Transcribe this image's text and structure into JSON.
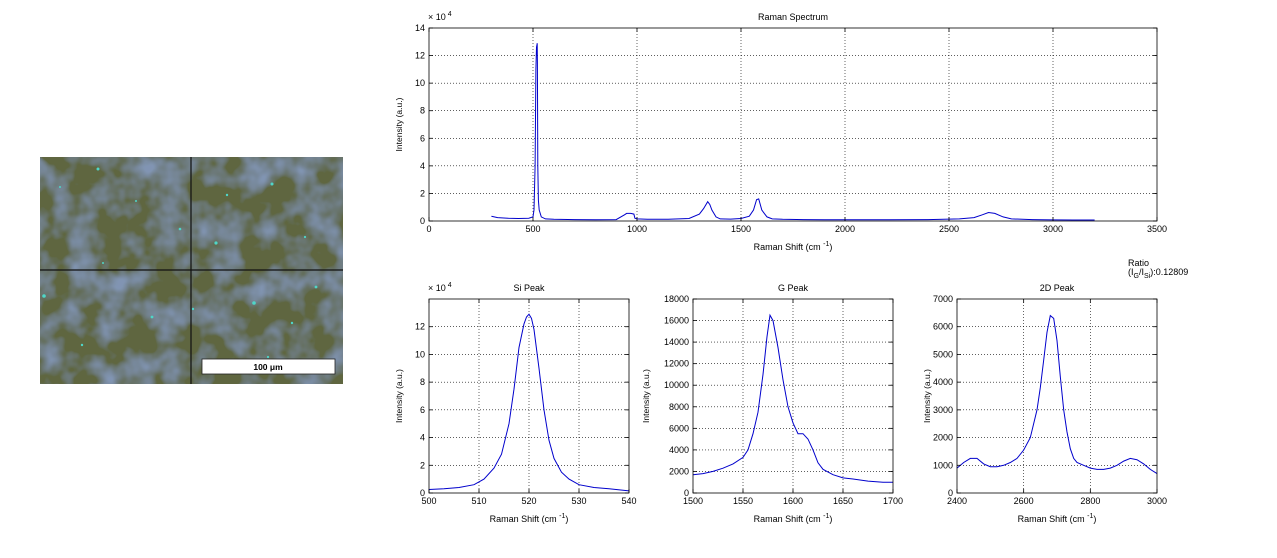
{
  "micrograph": {
    "scale_bar_label": "100 μm"
  },
  "ratio_annotation": {
    "label": "Ratio",
    "ratio_value": ":0.12809"
  },
  "chart_data": [
    {
      "type": "line",
      "title": "Raman Spectrum",
      "xlabel": "Raman Shift (cm -1)",
      "ylabel": "Intensity (a.u.)",
      "xlim": [
        0,
        3500
      ],
      "ylim": [
        0,
        140000
      ],
      "xticks": [
        0,
        500,
        1000,
        1500,
        2000,
        2500,
        3000,
        3500
      ],
      "yticks": [
        0,
        20000,
        40000,
        60000,
        80000,
        100000,
        120000,
        140000
      ],
      "ytick_labels": [
        "0",
        "2",
        "4",
        "6",
        "8",
        "10",
        "12",
        "14"
      ],
      "y_multiplier": "× 10^4",
      "grid": true,
      "line_color": "#0000cc",
      "x": [
        300,
        330,
        380,
        430,
        480,
        500,
        505,
        510,
        514,
        517,
        519,
        520,
        521,
        523,
        526,
        530,
        540,
        560,
        600,
        700,
        800,
        900,
        940,
        950,
        970,
        985,
        990,
        1000,
        1050,
        1150,
        1250,
        1300,
        1320,
        1340,
        1350,
        1360,
        1380,
        1400,
        1450,
        1500,
        1540,
        1560,
        1575,
        1585,
        1600,
        1612,
        1625,
        1650,
        1700,
        1800,
        1900,
        2000,
        2200,
        2400,
        2550,
        2620,
        2660,
        2690,
        2720,
        2760,
        2800,
        2900,
        3000,
        3100,
        3200
      ],
      "y": [
        3500,
        2500,
        2000,
        1800,
        2000,
        3000,
        8000,
        40000,
        110000,
        126000,
        128000,
        129000,
        115000,
        40000,
        15000,
        8000,
        3000,
        1500,
        1200,
        1000,
        900,
        1000,
        4500,
        5500,
        5500,
        5000,
        2000,
        1500,
        1300,
        1300,
        1800,
        5000,
        9000,
        14000,
        12000,
        8000,
        3000,
        1500,
        1400,
        1800,
        3500,
        8000,
        15500,
        16000,
        8000,
        5500,
        3000,
        1500,
        1200,
        1000,
        900,
        900,
        900,
        1000,
        1500,
        2500,
        4500,
        6200,
        5500,
        3000,
        1500,
        1000,
        800,
        700,
        700
      ]
    },
    {
      "type": "line",
      "title": "Si Peak",
      "xlabel": "Raman Shift (cm -1)",
      "ylabel": "Intensity (a.u.)",
      "xlim": [
        500,
        540
      ],
      "ylim": [
        0,
        140000
      ],
      "xticks": [
        500,
        510,
        520,
        530,
        540
      ],
      "yticks": [
        0,
        20000,
        40000,
        60000,
        80000,
        100000,
        120000
      ],
      "ytick_labels": [
        "0",
        "2",
        "4",
        "6",
        "8",
        "10",
        "12"
      ],
      "y_multiplier": "× 10^4",
      "grid": true,
      "line_color": "#0000cc",
      "x": [
        500,
        503,
        506,
        509,
        511,
        513,
        514.5,
        516,
        517,
        518,
        519,
        519.5,
        520,
        520.5,
        521,
        522,
        523,
        524,
        525,
        526.5,
        528,
        530,
        533,
        536,
        540
      ],
      "y": [
        2500,
        3000,
        4000,
        6000,
        10000,
        18000,
        28000,
        50000,
        75000,
        105000,
        122000,
        127000,
        129000,
        126000,
        118000,
        90000,
        60000,
        38000,
        25000,
        15000,
        10000,
        6000,
        4000,
        3000,
        1500
      ]
    },
    {
      "type": "line",
      "title": "G Peak",
      "xlabel": "Raman Shift (cm -1)",
      "ylabel": "Intensity (a.u.)",
      "xlim": [
        1500,
        1700
      ],
      "ylim": [
        0,
        18000
      ],
      "xticks": [
        1500,
        1550,
        1600,
        1650,
        1700
      ],
      "yticks": [
        0,
        2000,
        4000,
        6000,
        8000,
        10000,
        12000,
        14000,
        16000,
        18000
      ],
      "grid": true,
      "line_color": "#0000cc",
      "x": [
        1500,
        1510,
        1520,
        1530,
        1540,
        1550,
        1555,
        1560,
        1565,
        1570,
        1574,
        1577,
        1580,
        1585,
        1590,
        1595,
        1600,
        1605,
        1610,
        1615,
        1620,
        1625,
        1630,
        1640,
        1650,
        1660,
        1675,
        1690,
        1700
      ],
      "y": [
        1700,
        1800,
        2000,
        2300,
        2700,
        3300,
        4000,
        5500,
        7500,
        11000,
        14500,
        16500,
        16000,
        13500,
        10500,
        8000,
        6500,
        5500,
        5500,
        5000,
        4000,
        2800,
        2200,
        1700,
        1400,
        1300,
        1100,
        1000,
        1000
      ]
    },
    {
      "type": "line",
      "title": "2D Peak",
      "xlabel": "Raman Shift (cm -1)",
      "ylabel": "Intensity (a.u.)",
      "xlim": [
        2400,
        3000
      ],
      "ylim": [
        0,
        7000
      ],
      "xticks": [
        2400,
        2600,
        2800,
        3000
      ],
      "yticks": [
        0,
        1000,
        2000,
        3000,
        4000,
        5000,
        6000,
        7000
      ],
      "grid": true,
      "line_color": "#0000cc",
      "x": [
        2400,
        2420,
        2440,
        2460,
        2480,
        2500,
        2520,
        2540,
        2560,
        2580,
        2600,
        2620,
        2640,
        2650,
        2660,
        2670,
        2680,
        2690,
        2700,
        2710,
        2720,
        2730,
        2740,
        2750,
        2760,
        2780,
        2800,
        2820,
        2840,
        2860,
        2880,
        2900,
        2920,
        2940,
        2960,
        2980,
        3000
      ],
      "y": [
        900,
        1100,
        1250,
        1250,
        1050,
        950,
        950,
        1000,
        1100,
        1250,
        1550,
        2000,
        3000,
        3800,
        4800,
        5800,
        6400,
        6300,
        5500,
        4200,
        3000,
        2200,
        1600,
        1250,
        1100,
        1000,
        900,
        850,
        850,
        900,
        1000,
        1150,
        1250,
        1200,
        1050,
        850,
        700
      ]
    }
  ]
}
